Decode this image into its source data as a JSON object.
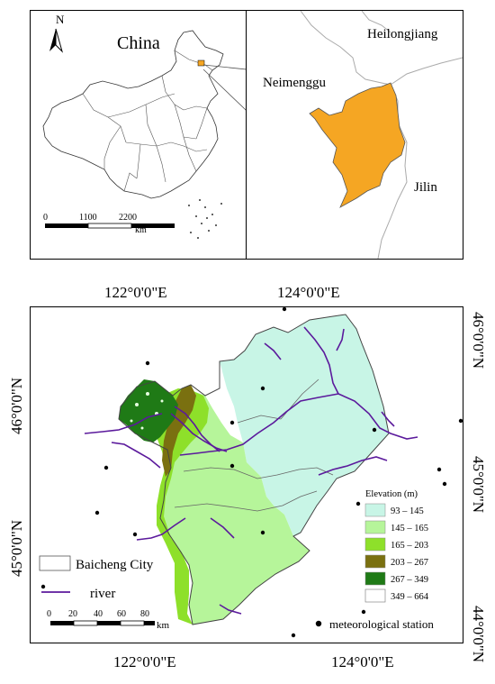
{
  "inset_china": {
    "north": "N",
    "title": "China",
    "scale_ticks": [
      "0",
      "1100",
      "2200"
    ],
    "scale_unit": "km"
  },
  "inset_region": {
    "labels": {
      "heilongjiang": "Heilongjiang",
      "neimenggu": "Neimenggu",
      "jilin": "Jilin"
    },
    "fill_color": "#f5a623"
  },
  "main_map": {
    "top_ticks": [
      "122°0'0\"E",
      "124°0'0\"E"
    ],
    "bottom_ticks": [
      "122°0'0\"E",
      "124°0'0\"E"
    ],
    "left_ticks": [
      "46°0'0\"N",
      "45°0'0\"N"
    ],
    "right_ticks": [
      "46°0'0\"N",
      "45°0'0\"N",
      "44°0'0\"N"
    ],
    "legend": {
      "title": "Elevation (m)",
      "classes": [
        {
          "range": "93 – 145",
          "color": "#c8f5e6"
        },
        {
          "range": "145 – 165",
          "color": "#b6f59a"
        },
        {
          "range": "165 – 203",
          "color": "#8ee02a"
        },
        {
          "range": "203 – 267",
          "color": "#7a7010"
        },
        {
          "range": "267 – 349",
          "color": "#1f7a16"
        },
        {
          "range": "349 – 664",
          "color": "#ffffff"
        }
      ]
    },
    "left_legend": {
      "city": "Baicheng City",
      "river": "river"
    },
    "scale_ticks": [
      "0",
      "20",
      "40",
      "60",
      "80"
    ],
    "scale_unit": "km",
    "station_label": "meteorological station",
    "river_color": "#5b1a9c"
  }
}
